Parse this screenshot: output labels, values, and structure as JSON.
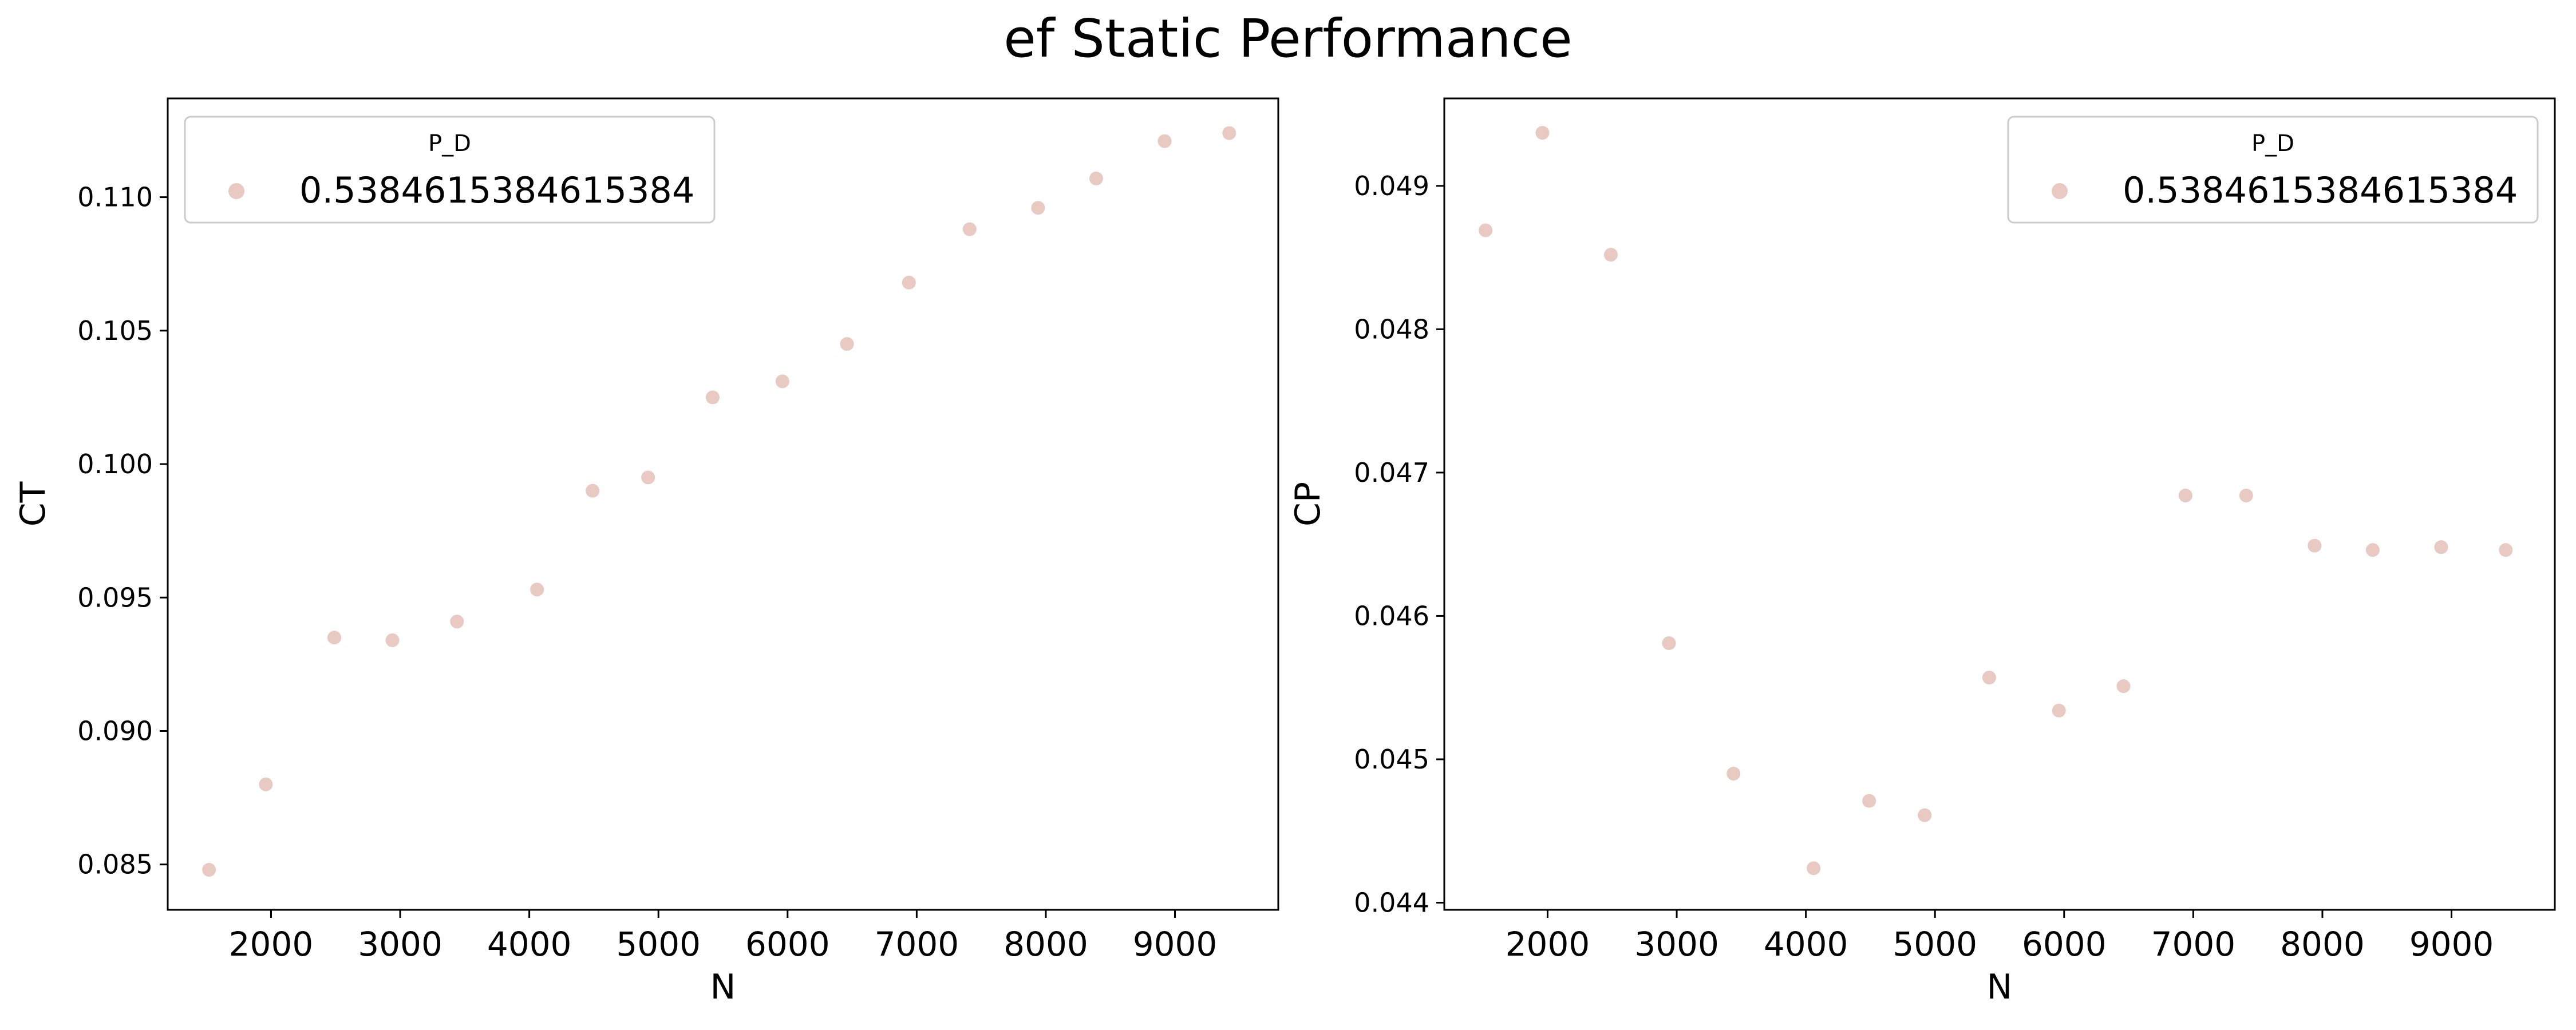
{
  "figure": {
    "title": "ef Static Performance"
  },
  "colors": {
    "marker": "#e8cac2",
    "axis": "#000000",
    "legend_border": "#cccccc"
  },
  "chart_data": [
    {
      "type": "scatter",
      "xlabel": "N",
      "ylabel": "CT",
      "xlim": [
        1200,
        9800
      ],
      "ylim": [
        0.0833,
        0.1137
      ],
      "xticks": [
        2000,
        3000,
        4000,
        5000,
        6000,
        7000,
        8000,
        9000
      ],
      "yticks": [
        0.085,
        0.09,
        0.095,
        0.1,
        0.105,
        0.11
      ],
      "xtick_labels": [
        "2000",
        "3000",
        "4000",
        "5000",
        "6000",
        "7000",
        "8000",
        "9000"
      ],
      "ytick_labels": [
        "0.085",
        "0.090",
        "0.095",
        "0.100",
        "0.105",
        "0.110"
      ],
      "grid": false,
      "legend": {
        "title": "P_D",
        "placement": "top-left"
      },
      "series": [
        {
          "name": "0.5384615384615384",
          "points": [
            [
              1520,
              0.0848
            ],
            [
              1960,
              0.088
            ],
            [
              2490,
              0.0935
            ],
            [
              2940,
              0.0934
            ],
            [
              3440,
              0.0941
            ],
            [
              4060,
              0.0953
            ],
            [
              4490,
              0.099
            ],
            [
              4920,
              0.0995
            ],
            [
              5420,
              0.1025
            ],
            [
              5960,
              0.1031
            ],
            [
              6460,
              0.1045
            ],
            [
              6940,
              0.1068
            ],
            [
              7410,
              0.1088
            ],
            [
              7940,
              0.1096
            ],
            [
              8390,
              0.1107
            ],
            [
              8920,
              0.1121
            ],
            [
              9420,
              0.1124
            ]
          ]
        }
      ]
    },
    {
      "type": "scatter",
      "xlabel": "N",
      "ylabel": "CP",
      "xlim": [
        1200,
        9800
      ],
      "ylim": [
        0.04395,
        0.04961
      ],
      "xticks": [
        2000,
        3000,
        4000,
        5000,
        6000,
        7000,
        8000,
        9000
      ],
      "yticks": [
        0.044,
        0.045,
        0.046,
        0.047,
        0.048,
        0.049
      ],
      "xtick_labels": [
        "2000",
        "3000",
        "4000",
        "5000",
        "6000",
        "7000",
        "8000",
        "9000"
      ],
      "ytick_labels": [
        "0.044",
        "0.045",
        "0.046",
        "0.047",
        "0.048",
        "0.049"
      ],
      "grid": false,
      "legend": {
        "title": "P_D",
        "placement": "top-right"
      },
      "series": [
        {
          "name": "0.5384615384615384",
          "points": [
            [
              1520,
              0.04869
            ],
            [
              1960,
              0.04937
            ],
            [
              2490,
              0.04852
            ],
            [
              2940,
              0.04581
            ],
            [
              3440,
              0.0449
            ],
            [
              4060,
              0.04424
            ],
            [
              4490,
              0.04471
            ],
            [
              4920,
              0.04461
            ],
            [
              5420,
              0.04557
            ],
            [
              5960,
              0.04534
            ],
            [
              6460,
              0.04551
            ],
            [
              6940,
              0.04684
            ],
            [
              7410,
              0.04684
            ],
            [
              7940,
              0.04649
            ],
            [
              8390,
              0.04646
            ],
            [
              8920,
              0.04648
            ],
            [
              9420,
              0.04646
            ]
          ]
        }
      ]
    }
  ]
}
